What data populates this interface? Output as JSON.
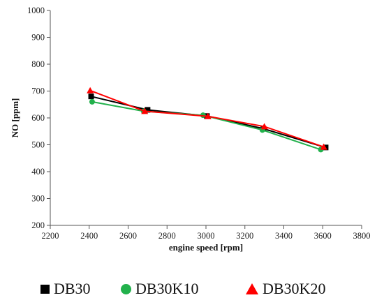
{
  "chart_data": {
    "type": "line",
    "title": "",
    "xlabel": "engine speed [rpm]",
    "ylabel": "NO [ppm]",
    "xlim": [
      2200,
      3800
    ],
    "ylim": [
      200,
      1000
    ],
    "x_ticks": [
      2200,
      2400,
      2600,
      2800,
      3000,
      3200,
      3400,
      3600,
      3800
    ],
    "y_ticks": [
      200,
      300,
      400,
      500,
      600,
      700,
      800,
      900,
      1000
    ],
    "grid": false,
    "legend_position": "bottom",
    "series": [
      {
        "name": "DB30",
        "color": "#000000",
        "marker": "square",
        "x": [
          2410,
          2700,
          3005,
          3295,
          3615
        ],
        "y": [
          680,
          630,
          607,
          560,
          490
        ]
      },
      {
        "name": "DB30K10",
        "color": "#22b14c",
        "marker": "circle",
        "x": [
          2415,
          2680,
          2985,
          3290,
          3590
        ],
        "y": [
          660,
          625,
          610,
          555,
          482
        ]
      },
      {
        "name": "DB30K20",
        "color": "#ff0000",
        "marker": "triangle",
        "x": [
          2405,
          2685,
          3010,
          3300,
          3605
        ],
        "y": [
          702,
          625,
          606,
          568,
          492
        ]
      }
    ]
  },
  "legend": {
    "items": [
      "DB30",
      "DB30K10",
      "DB30K20"
    ]
  }
}
